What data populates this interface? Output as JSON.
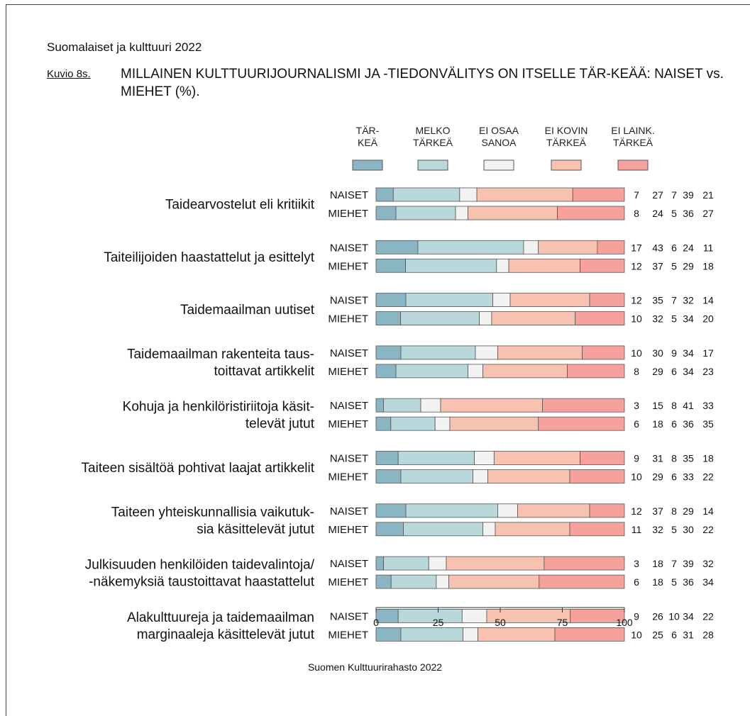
{
  "header": {
    "suptitle": "Suomalaiset ja kulttuuri 2022",
    "figure_label": "Kuvio 8s.",
    "figure_title": "MILLAINEN KULTTUURIJOURNALISMI JA -TIEDONVÄLITYS ON ITSELLE TÄR-KEÄÄ: NAISET vs. MIEHET (%)."
  },
  "source": "Suomen Kulttuurirahasto 2022",
  "chart_data": {
    "type": "bar",
    "orientation": "horizontal",
    "stacked": true,
    "xlim": [
      0,
      100
    ],
    "xticks": [
      0,
      25,
      50,
      75,
      100
    ],
    "group_labels": [
      "NAISET",
      "MIEHET"
    ],
    "legend": [
      {
        "lines": [
          "TÄR-",
          "KEÄ"
        ],
        "color": "#8ab6c3"
      },
      {
        "lines": [
          "MELKO",
          "TÄRKEÄ"
        ],
        "color": "#b8d8dc"
      },
      {
        "lines": [
          "EI OSAA",
          "SANOA"
        ],
        "color": "#f2f2f2"
      },
      {
        "lines": [
          "EI KOVIN",
          "TÄRKEÄ"
        ],
        "color": "#f7c2b0"
      },
      {
        "lines": [
          "EI LAINK.",
          "TÄRKEÄ"
        ],
        "color": "#f7a19d"
      }
    ],
    "categories": [
      {
        "label": [
          "Taidearvostelut eli kritiikit"
        ],
        "naiset": [
          7,
          27,
          7,
          39,
          21
        ],
        "miehet": [
          8,
          24,
          5,
          36,
          27
        ]
      },
      {
        "label": [
          "Taiteilijoiden haastattelut ja esittelyt"
        ],
        "naiset": [
          17,
          43,
          6,
          24,
          11
        ],
        "miehet": [
          12,
          37,
          5,
          29,
          18
        ]
      },
      {
        "label": [
          "Taidemaailman uutiset"
        ],
        "naiset": [
          12,
          35,
          7,
          32,
          14
        ],
        "miehet": [
          10,
          32,
          5,
          34,
          20
        ]
      },
      {
        "label": [
          "Taidemaailman rakenteita taus-",
          "toittavat artikkelit"
        ],
        "naiset": [
          10,
          30,
          9,
          34,
          17
        ],
        "miehet": [
          8,
          29,
          6,
          34,
          23
        ]
      },
      {
        "label": [
          "Kohuja ja henkilöristiriitoja käsit-",
          "televät jutut"
        ],
        "naiset": [
          3,
          15,
          8,
          41,
          33
        ],
        "miehet": [
          6,
          18,
          6,
          36,
          35
        ]
      },
      {
        "label": [
          "Taiteen sisältöä pohtivat laajat artikkelit"
        ],
        "naiset": [
          9,
          31,
          8,
          35,
          18
        ],
        "miehet": [
          10,
          29,
          6,
          33,
          22
        ]
      },
      {
        "label": [
          "Taiteen yhteiskunnallisia vaikutuk-",
          "sia käsittelevät jutut"
        ],
        "naiset": [
          12,
          37,
          8,
          29,
          14
        ],
        "miehet": [
          11,
          32,
          5,
          30,
          22
        ]
      },
      {
        "label": [
          "Julkisuuden henkilöiden taidevalintoja/",
          "-näkemyksiä taustoittavat haastattelut"
        ],
        "naiset": [
          3,
          18,
          7,
          39,
          32
        ],
        "miehet": [
          6,
          18,
          5,
          36,
          34
        ]
      },
      {
        "label": [
          "Alakulttuureja ja taidemaailman",
          "marginaaleja käsittelevät jutut"
        ],
        "naiset": [
          9,
          26,
          10,
          34,
          22
        ],
        "miehet": [
          10,
          25,
          6,
          31,
          28
        ]
      }
    ]
  }
}
